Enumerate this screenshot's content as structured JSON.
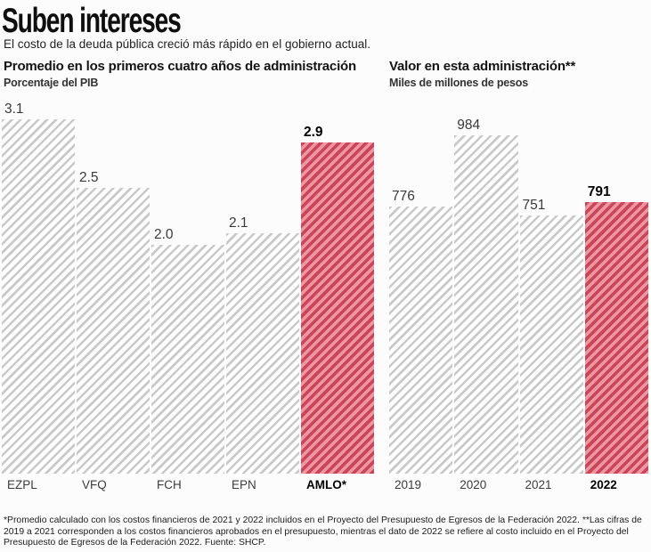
{
  "header": {
    "title": "Suben intereses",
    "subtitle": "El costo de la deuda pública creció más rápido en el gobierno actual."
  },
  "colors": {
    "gray_stripe": "#c9c9c9",
    "gray_bg": "#ffffff",
    "highlight_stripe": "#cf4357",
    "highlight_bg": "#e999a3"
  },
  "chart_data": [
    {
      "type": "bar",
      "title": "Promedio en los primeros cuatro años de administración",
      "ylabel": "Porcentaje del PIB",
      "categories": [
        "EZPL",
        "VFQ",
        "FCH",
        "EPN",
        "AMLO*"
      ],
      "values": [
        3.1,
        2.5,
        2.0,
        2.1,
        2.9
      ],
      "value_labels": [
        "3.1",
        "2.5",
        "2.0",
        "2.1",
        "2.9"
      ],
      "highlight_index": 4,
      "ylim": [
        0,
        3.1
      ],
      "grid": false,
      "legend": false
    },
    {
      "type": "bar",
      "title": "Valor en esta administración**",
      "ylabel": "Miles de millones de pesos",
      "categories": [
        "2019",
        "2020",
        "2021",
        "2022"
      ],
      "values": [
        776,
        984,
        751,
        791
      ],
      "value_labels": [
        "776",
        "984",
        "751",
        "791"
      ],
      "highlight_index": 3,
      "ylim": [
        0,
        984
      ],
      "grid": false,
      "legend": false
    }
  ],
  "footnote": "*Promedio calculado con los costos financieros de 2021 y 2022 incluidos en el Proyecto del Presupuesto de Egresos de la Federación 2022. **Las cifras de 2019 a 2021 corresponden a los costos financieros aprobados en el presupuesto, mientras el dato de 2022 se refiere al costo incluido en el Proyecto del Presupuesto de Egresos de la Federación 2022. Fuente: SHCP."
}
